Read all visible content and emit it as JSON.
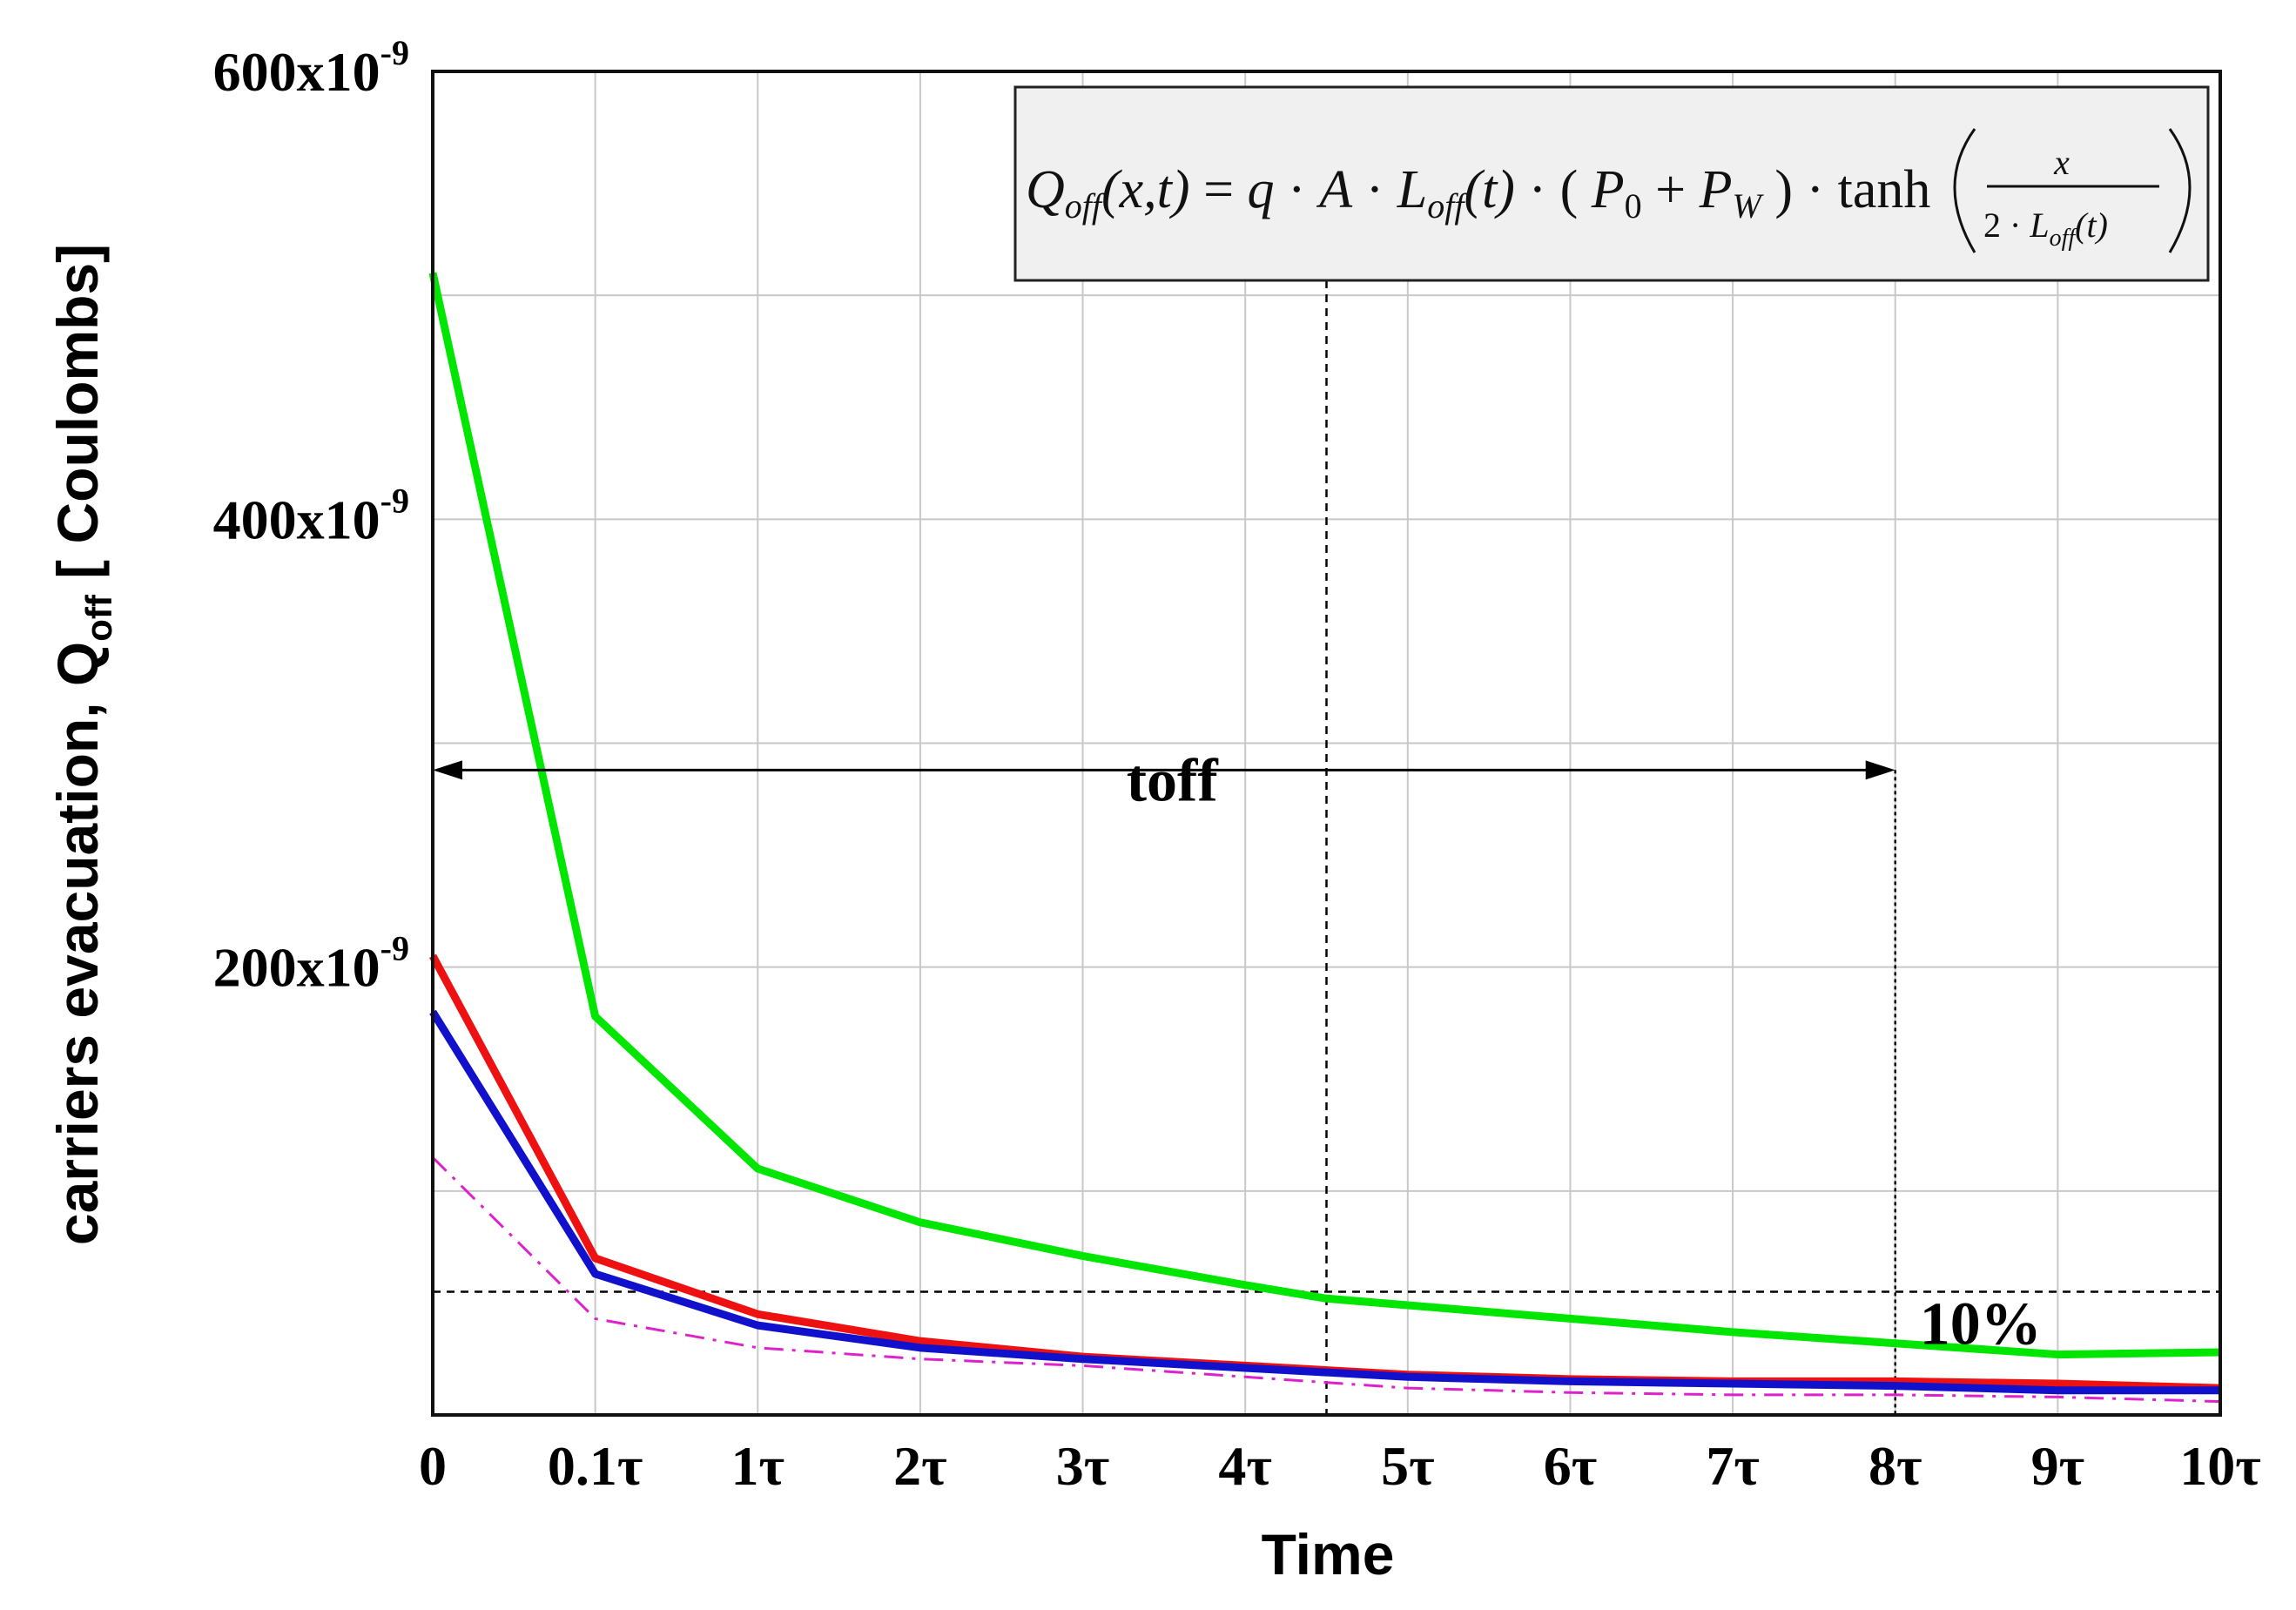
{
  "chart_data": {
    "type": "line",
    "title": "",
    "xlabel": "Time",
    "ylabel": "carriers evacuation, Q",
    "ylabel_sub": "off",
    "ylabel_unit": " [ Coulombs]",
    "x_positions": [
      0,
      1,
      2,
      3,
      4,
      5,
      6,
      7,
      8,
      9,
      10,
      11
    ],
    "x_tick_labels": [
      "0",
      "0.1τ",
      "1τ",
      "2τ",
      "3τ",
      "4τ",
      "5τ",
      "6τ",
      "7τ",
      "8τ",
      "9τ",
      "10τ"
    ],
    "xlim": [
      0,
      11
    ],
    "ylim": [
      0,
      600
    ],
    "y_unit_scale": "x10^-9",
    "y_ticks": [
      {
        "value": 200,
        "base": "200x10",
        "exp": "-9"
      },
      {
        "value": 400,
        "base": "400x10",
        "exp": "-9"
      },
      {
        "value": 600,
        "base": "600x10",
        "exp": "-9"
      }
    ],
    "y_zero_label": "0",
    "grid": true,
    "series": [
      {
        "name": "green",
        "color": "#00e600",
        "style": "solid",
        "x": [
          0,
          1,
          2,
          3,
          4,
          5,
          5.5,
          6,
          7,
          8,
          9,
          10,
          11
        ],
        "values": [
          510,
          178,
          110,
          86,
          71,
          58,
          52,
          49,
          43,
          37,
          32,
          27,
          28
        ]
      },
      {
        "name": "red",
        "color": "#ee1111",
        "style": "solid",
        "x": [
          0,
          1,
          2,
          3,
          4,
          5,
          6,
          7,
          8,
          9,
          10,
          11
        ],
        "values": [
          205,
          70,
          45,
          33,
          26,
          22,
          18,
          16,
          15,
          15,
          14,
          12
        ]
      },
      {
        "name": "blue",
        "color": "#1111cc",
        "style": "solid",
        "x": [
          0,
          1,
          2,
          3,
          4,
          5,
          6,
          7,
          8,
          9,
          10,
          11
        ],
        "values": [
          180,
          63,
          40,
          30,
          25,
          21,
          17,
          15,
          14,
          13,
          11,
          11
        ]
      },
      {
        "name": "magenta",
        "color": "#dd22cc",
        "style": "dashdot",
        "x": [
          0,
          1,
          2,
          3,
          4,
          5,
          6,
          7,
          8,
          9,
          10,
          11
        ],
        "values": [
          115,
          43,
          30,
          25,
          22,
          17,
          12,
          10,
          9,
          9,
          8,
          6
        ]
      }
    ],
    "annotations": {
      "toff_label": "toff",
      "toff_range": [
        0,
        9
      ],
      "toff_level": 288,
      "percent_label": "10%",
      "ten_percent_level": 55,
      "vertical_marker_x": 5.5
    },
    "formula": {
      "lhs": "Q",
      "lhs_sub": "off",
      "args": "(x,t)",
      "rhs_q": "q",
      "rhs_A": "A",
      "rhs_L": "L",
      "rhs_L_sub": "off",
      "rhs_t": "(t)",
      "P0": "P",
      "P0_sub": "0",
      "PW": "P",
      "PW_sub": "W",
      "tanh": "tanh",
      "num": "x",
      "den_2": "2",
      "den_L": "L",
      "den_L_sub": "off",
      "den_t": "(t)"
    }
  }
}
